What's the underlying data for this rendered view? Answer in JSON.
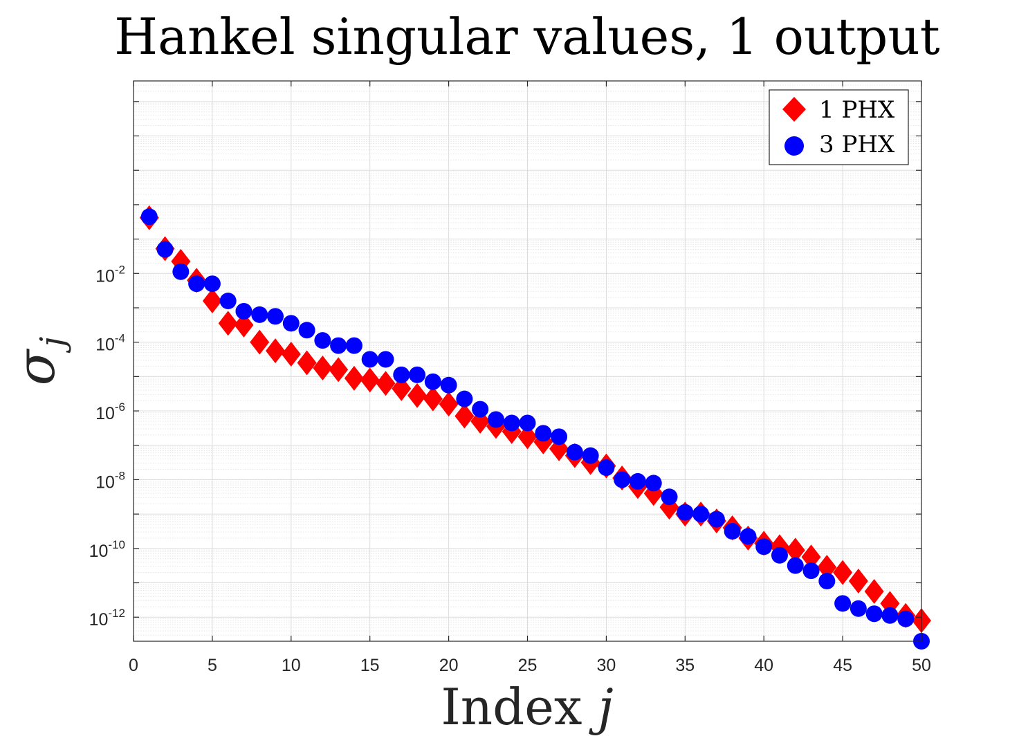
{
  "chart_data": {
    "type": "scatter",
    "title": "Hankel singular values, 1 output",
    "xlabel_text": "Index ",
    "xlabel_var": "j",
    "ylabel_sym": "σ",
    "ylabel_sub": "j",
    "xlim": [
      0,
      50
    ],
    "ylim_log10": [
      -12.7,
      3.6
    ],
    "yscale": "log",
    "grid": true,
    "legend_position": "top-right",
    "x_ticks": [
      0,
      5,
      10,
      15,
      20,
      25,
      30,
      35,
      40,
      45,
      50
    ],
    "x_tick_labels": [
      "0",
      "5",
      "10",
      "15",
      "20",
      "25",
      "30",
      "35",
      "40",
      "45",
      "50"
    ],
    "y_tick_exponents": [
      -12,
      -10,
      -8,
      -6,
      -4,
      -2
    ],
    "y_tick_labels": [
      {
        "base": "10",
        "exp": "-12"
      },
      {
        "base": "10",
        "exp": "-10"
      },
      {
        "base": "10",
        "exp": "-8"
      },
      {
        "base": "10",
        "exp": "-6"
      },
      {
        "base": "10",
        "exp": "-4"
      },
      {
        "base": "10",
        "exp": "-2"
      }
    ],
    "x": [
      1,
      2,
      3,
      4,
      5,
      6,
      7,
      8,
      9,
      10,
      11,
      12,
      13,
      14,
      15,
      16,
      17,
      18,
      19,
      20,
      21,
      22,
      23,
      24,
      25,
      26,
      27,
      28,
      29,
      30,
      31,
      32,
      33,
      34,
      35,
      36,
      37,
      38,
      39,
      40,
      41,
      42,
      43,
      44,
      45,
      46,
      47,
      48,
      49,
      50
    ],
    "series": [
      {
        "name": "1 PHX",
        "marker": "diamond",
        "color": "#ff0000",
        "log10_values": [
          -0.38,
          -1.28,
          -1.65,
          -2.2,
          -2.8,
          -3.45,
          -3.5,
          -4.0,
          -4.25,
          -4.35,
          -4.6,
          -4.75,
          -4.8,
          -5.05,
          -5.1,
          -5.2,
          -5.35,
          -5.55,
          -5.65,
          -5.8,
          -6.15,
          -6.3,
          -6.45,
          -6.6,
          -6.75,
          -6.9,
          -7.1,
          -7.3,
          -7.5,
          -7.6,
          -7.95,
          -8.2,
          -8.4,
          -8.8,
          -9.0,
          -9.0,
          -9.2,
          -9.4,
          -9.7,
          -9.85,
          -9.95,
          -10.05,
          -10.25,
          -10.55,
          -10.7,
          -10.95,
          -11.25,
          -11.6,
          -11.95,
          -12.1
        ],
        "values": [
          0.42,
          0.052,
          0.022,
          0.0063,
          0.0016,
          0.00035,
          0.00032,
          0.0001,
          5.6e-05,
          4.5e-05,
          2.5e-05,
          1.8e-05,
          1.6e-05,
          8.9e-06,
          7.9e-06,
          6.3e-06,
          4.5e-06,
          2.8e-06,
          2.2e-06,
          1.6e-06,
          7.1e-07,
          5e-07,
          3.5e-07,
          2.5e-07,
          1.8e-07,
          1.3e-07,
          7.9e-08,
          5e-08,
          3.2e-08,
          2.5e-08,
          1.1e-08,
          6.3e-09,
          4e-09,
          1.6e-09,
          1e-09,
          1e-09,
          6.3e-10,
          4e-10,
          2e-10,
          1.4e-10,
          1.1e-10,
          8.9e-11,
          5.6e-11,
          2.8e-11,
          2e-11,
          1.1e-11,
          5.6e-12,
          2.5e-12,
          1.1e-12,
          7.9e-13
        ]
      },
      {
        "name": "3 PHX",
        "marker": "circle",
        "color": "#0000ff",
        "log10_values": [
          -0.35,
          -1.3,
          -1.95,
          -2.3,
          -2.3,
          -2.8,
          -3.1,
          -3.2,
          -3.25,
          -3.45,
          -3.65,
          -3.95,
          -4.1,
          -4.1,
          -4.5,
          -4.5,
          -4.95,
          -4.95,
          -5.15,
          -5.25,
          -5.65,
          -5.95,
          -6.25,
          -6.35,
          -6.35,
          -6.65,
          -6.75,
          -7.2,
          -7.3,
          -7.65,
          -8.0,
          -8.05,
          -8.1,
          -8.5,
          -8.95,
          -9.0,
          -9.15,
          -9.5,
          -9.65,
          -9.95,
          -10.2,
          -10.5,
          -10.65,
          -10.95,
          -11.6,
          -11.75,
          -11.9,
          -11.95,
          -12.05,
          -12.7
        ],
        "values": [
          0.45,
          0.05,
          0.011,
          0.005,
          0.005,
          0.0016,
          0.00079,
          0.00063,
          0.00056,
          0.00035,
          0.00022,
          0.00011,
          7.9e-05,
          7.9e-05,
          3.2e-05,
          3.2e-05,
          1.1e-05,
          1.1e-05,
          7.1e-06,
          5.6e-06,
          2.2e-06,
          1.1e-06,
          5.6e-07,
          4.5e-07,
          4.5e-07,
          2.2e-07,
          1.8e-07,
          6.3e-08,
          5e-08,
          2.2e-08,
          1e-08,
          8.9e-09,
          7.9e-09,
          3.2e-09,
          1.1e-09,
          1e-09,
          7.1e-10,
          3.2e-10,
          2.2e-10,
          1.1e-10,
          6.3e-11,
          3.2e-11,
          2.2e-11,
          1.1e-11,
          2.5e-12,
          1.8e-12,
          1.3e-12,
          1.1e-12,
          8.9e-13,
          2e-13
        ]
      }
    ]
  }
}
